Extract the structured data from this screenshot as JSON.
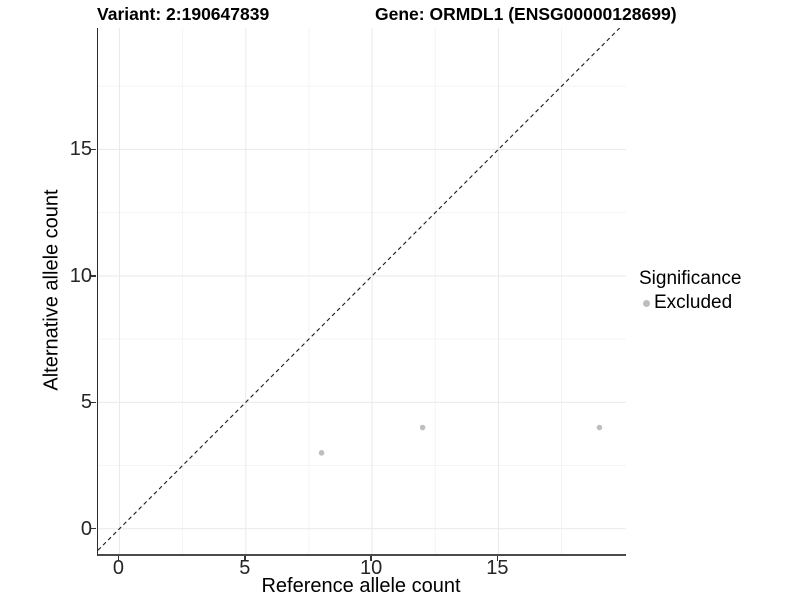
{
  "titles": {
    "variant": "Variant: 2:190647839",
    "gene": "Gene: ORMDL1 (ENSG00000128699)"
  },
  "legend": {
    "title": "Significance",
    "items": [
      {
        "label": "Excluded",
        "color": "#bebebe"
      }
    ]
  },
  "colors": {
    "point": "#bebebe",
    "grid_major": "#e9e9e9",
    "grid_minor": "#f4f4f4",
    "axis_line": "#333333",
    "tick_label": "#262626",
    "reference_line": "#1a1a1a",
    "background": "#ffffff"
  },
  "chart_data": {
    "type": "scatter",
    "title": "Variant: 2:190647839   Gene: ORMDL1 (ENSG00000128699)",
    "xlabel": "Reference allele count",
    "ylabel": "Alternative allele count",
    "xlim": [
      -0.85,
      20.05
    ],
    "ylim": [
      -1.0,
      19.8
    ],
    "x_major_breaks": [
      0,
      5,
      10,
      15
    ],
    "x_minor_breaks": [
      2.5,
      7.5,
      12.5,
      17.5
    ],
    "y_major_breaks": [
      0,
      5,
      10,
      15
    ],
    "y_minor_breaks": [
      2.5,
      7.5,
      12.5,
      17.5
    ],
    "grid": true,
    "legend_position": "right",
    "reference_line": {
      "kind": "identity",
      "style": "dashed"
    },
    "series": [
      {
        "name": "Excluded",
        "color": "#bebebe",
        "points": [
          {
            "x": 8,
            "y": 3
          },
          {
            "x": 12,
            "y": 4
          },
          {
            "x": 19,
            "y": 4
          }
        ]
      }
    ]
  }
}
